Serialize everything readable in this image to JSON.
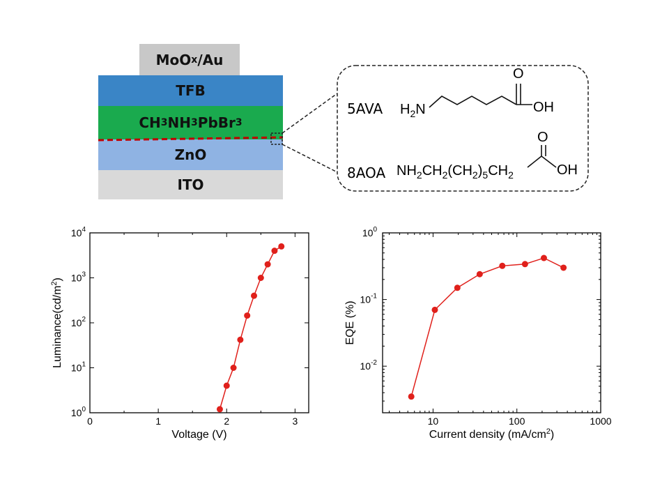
{
  "stack": {
    "layers": [
      {
        "id": "moox",
        "label_main": "MoO",
        "label_sub": "x",
        "label_tail": "/Au",
        "color": "#c8c8c8"
      },
      {
        "id": "tfb",
        "label": "TFB",
        "color": "#3a85c6"
      },
      {
        "id": "perovskite",
        "label_parts": [
          [
            "CH",
            "3"
          ],
          [
            "NH",
            "3"
          ],
          [
            "PbBr",
            "3"
          ]
        ],
        "color": "#1aaa4e"
      },
      {
        "id": "zno",
        "label": "ZnO",
        "color": "#8fb3e3"
      },
      {
        "id": "ito",
        "label": "ITO",
        "color": "#d9d9d9"
      }
    ],
    "interface_color": "#c00000"
  },
  "inset": {
    "molecules": [
      {
        "name": "5AVA",
        "formula_left": "H",
        "formula_left_sub": "2",
        "formula_left_tail": "N",
        "acid_o": "O",
        "acid_oh": "OH"
      },
      {
        "name": "8AOA",
        "formula_parts": [
          [
            "NH",
            "2"
          ],
          [
            "CH",
            "2"
          ],
          [
            "(CH",
            ""
          ],
          [
            "2",
            "sub"
          ],
          [
            ")",
            ""
          ],
          [
            "5",
            "sub"
          ],
          [
            "CH",
            "2"
          ]
        ],
        "acid_o": "O",
        "acid_oh": "OH"
      }
    ]
  },
  "chart_data": [
    {
      "type": "line",
      "xlabel": "Voltage (V)",
      "ylabel_main": "Luminance(cd/m",
      "ylabel_sup": "2",
      "ylabel_tail": ")",
      "xlim": [
        0,
        3.2
      ],
      "ylim": [
        1,
        10000
      ],
      "yscale": "log",
      "xticks": [
        0,
        1,
        2,
        3
      ],
      "yticks": [
        {
          "base": "10",
          "exp": "0",
          "v": 1
        },
        {
          "base": "10",
          "exp": "1",
          "v": 10
        },
        {
          "base": "10",
          "exp": "2",
          "v": 100
        },
        {
          "base": "10",
          "exp": "3",
          "v": 1000
        },
        {
          "base": "10",
          "exp": "4",
          "v": 10000
        }
      ],
      "color": "#e0201b",
      "series": [
        {
          "x": [
            1.9,
            2.0,
            2.1,
            2.2,
            2.3,
            2.4,
            2.5,
            2.6,
            2.7,
            2.8
          ],
          "y": [
            1.2,
            4,
            10,
            42,
            145,
            400,
            1000,
            2000,
            4000,
            5000
          ]
        }
      ]
    },
    {
      "type": "line",
      "xlabel_main": "Current density (mA/cm",
      "xlabel_sup": "2",
      "xlabel_tail": ")",
      "ylabel": "EQE (%)",
      "xscale": "log",
      "yscale": "log",
      "xlim": [
        2.5,
        1000
      ],
      "ylim": [
        0.002,
        1
      ],
      "xticks": [
        {
          "label": "10",
          "v": 10
        },
        {
          "label": "100",
          "v": 100
        },
        {
          "label": "1000",
          "v": 1000
        }
      ],
      "yticks": [
        {
          "base": "10",
          "exp": "0",
          "v": 1
        },
        {
          "base": "10",
          "exp": "-1",
          "v": 0.1
        },
        {
          "base": "10",
          "exp": "-2",
          "v": 0.01
        }
      ],
      "color": "#e0201b",
      "series": [
        {
          "x": [
            5.5,
            10.5,
            19.5,
            36,
            67,
            125,
            210,
            360
          ],
          "y": [
            0.0035,
            0.07,
            0.15,
            0.24,
            0.32,
            0.34,
            0.42,
            0.3
          ]
        }
      ]
    }
  ]
}
